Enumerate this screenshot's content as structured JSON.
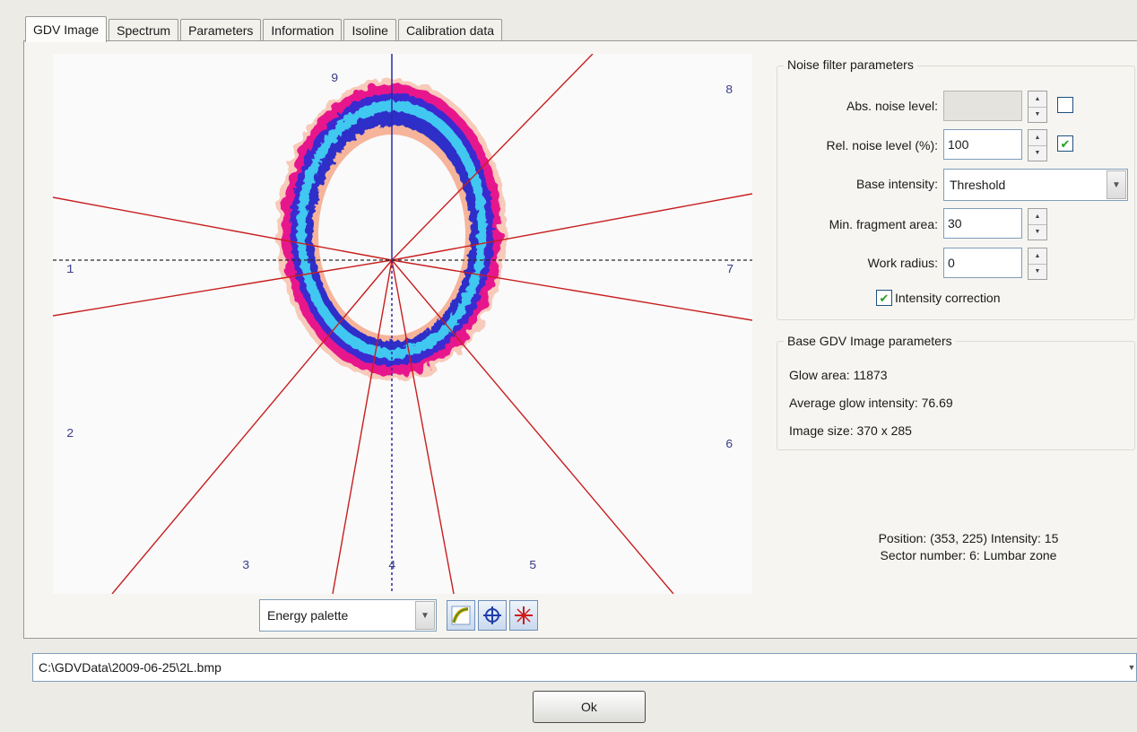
{
  "tabs": [
    {
      "label": "GDV Image",
      "active": true
    },
    {
      "label": "Spectrum"
    },
    {
      "label": "Parameters"
    },
    {
      "label": "Information"
    },
    {
      "label": "Isoline"
    },
    {
      "label": "Calibration data"
    }
  ],
  "image": {
    "sector_labels": [
      "9",
      "8",
      "1",
      "7",
      "2",
      "6",
      "3",
      "4",
      "5"
    ],
    "palette": "Energy palette",
    "tools": [
      "curve-tool-icon",
      "crosshair-circle-icon",
      "red-cross-icon"
    ]
  },
  "noise_filter": {
    "title": "Noise filter parameters",
    "abs_noise_label": "Abs. noise level:",
    "abs_noise_value": "",
    "abs_noise_checked": false,
    "rel_noise_label": "Rel. noise level (%):",
    "rel_noise_value": "100",
    "rel_noise_checked": true,
    "base_intensity_label": "Base intensity:",
    "base_intensity_value": "Threshold",
    "min_fragment_label": "Min. fragment area:",
    "min_fragment_value": "30",
    "work_radius_label": "Work radius:",
    "work_radius_value": "0",
    "intensity_correction_label": "Intensity correction",
    "intensity_correction_checked": true
  },
  "base_params": {
    "title": "Base GDV Image parameters",
    "glow_area": "Glow area: 11873",
    "avg_intensity": "Average glow intensity: 76.69",
    "image_size": "Image size: 370 x 285"
  },
  "status": {
    "position": "Position: (353, 225) Intensity: 15",
    "sector": "Sector number: 6: Lumbar zone"
  },
  "path": "C:\\GDVData\\2009-06-25\\2L.bmp",
  "ok_label": "Ok",
  "colors": {
    "accent_line": "#c81e1e",
    "axis": "#2b2ba8",
    "glow_outer": "#e8178c",
    "glow_mid": "#3a2ad0",
    "glow_inner": "#3fc8f0"
  }
}
